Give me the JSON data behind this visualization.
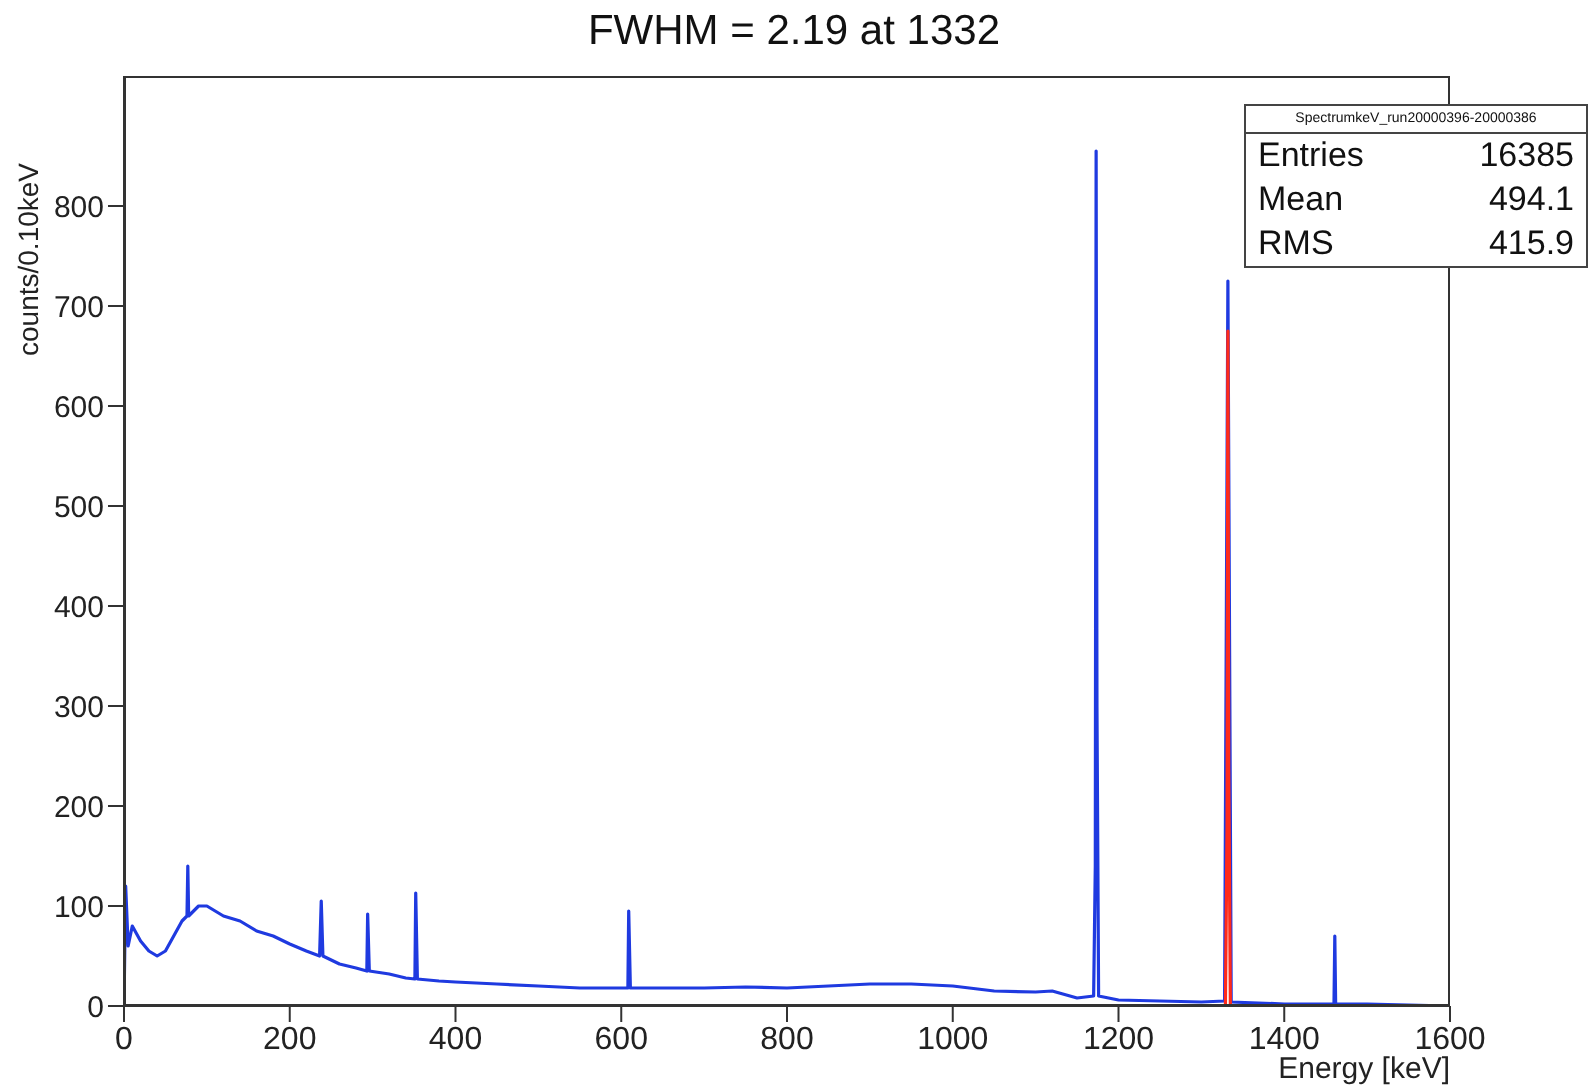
{
  "chart_data": {
    "type": "line",
    "title": "FWHM = 2.19 at 1332",
    "xlabel": "Energy [keV]",
    "ylabel": "counts/0.10keV",
    "xlim": [
      0,
      1600
    ],
    "xticks": [
      0,
      200,
      400,
      600,
      800,
      1000,
      1200,
      1400,
      1600
    ],
    "ylim": [
      0,
      930
    ],
    "yticks": [
      0,
      100,
      200,
      300,
      400,
      500,
      600,
      700,
      800
    ],
    "marker": "none",
    "line_style": "solid",
    "annotations": [
      "SpectrumkeV_run20000396-20000386",
      "Entries",
      "16385",
      "Mean",
      "494.1",
      "RMS",
      "415.9"
    ],
    "series": [
      {
        "color": "#1f3ae0",
        "x": [
          0,
          2,
          5,
          10,
          20,
          30,
          40,
          50,
          60,
          70,
          76,
          77,
          78,
          90,
          100,
          110,
          120,
          140,
          160,
          180,
          200,
          220,
          236,
          238,
          240,
          260,
          280,
          293,
          294,
          296,
          320,
          340,
          351,
          352,
          354,
          380,
          400,
          450,
          500,
          550,
          600,
          608,
          609,
          611,
          650,
          700,
          750,
          800,
          850,
          900,
          950,
          1000,
          1050,
          1100,
          1120,
          1150,
          1170,
          1172,
          1173,
          1174,
          1176,
          1200,
          1250,
          1300,
          1328,
          1332,
          1336,
          1400,
          1460,
          1461,
          1462,
          1500,
          1600
        ],
        "values": [
          0,
          120,
          60,
          80,
          65,
          55,
          50,
          55,
          70,
          85,
          90,
          140,
          90,
          100,
          100,
          95,
          90,
          85,
          75,
          70,
          62,
          55,
          50,
          105,
          50,
          42,
          38,
          35,
          92,
          35,
          32,
          28,
          27,
          113,
          27,
          25,
          24,
          22,
          20,
          18,
          18,
          18,
          95,
          18,
          18,
          18,
          19,
          18,
          20,
          22,
          22,
          20,
          15,
          14,
          15,
          8,
          10,
          140,
          855,
          300,
          10,
          6,
          5,
          4,
          5,
          725,
          4,
          2,
          2,
          70,
          2,
          2,
          0
        ]
      },
      {
        "color": "#ff2a1a",
        "x": [
          1329,
          1331,
          1332,
          1333,
          1335
        ],
        "values": [
          0,
          180,
          675,
          240,
          0
        ]
      }
    ]
  }
}
